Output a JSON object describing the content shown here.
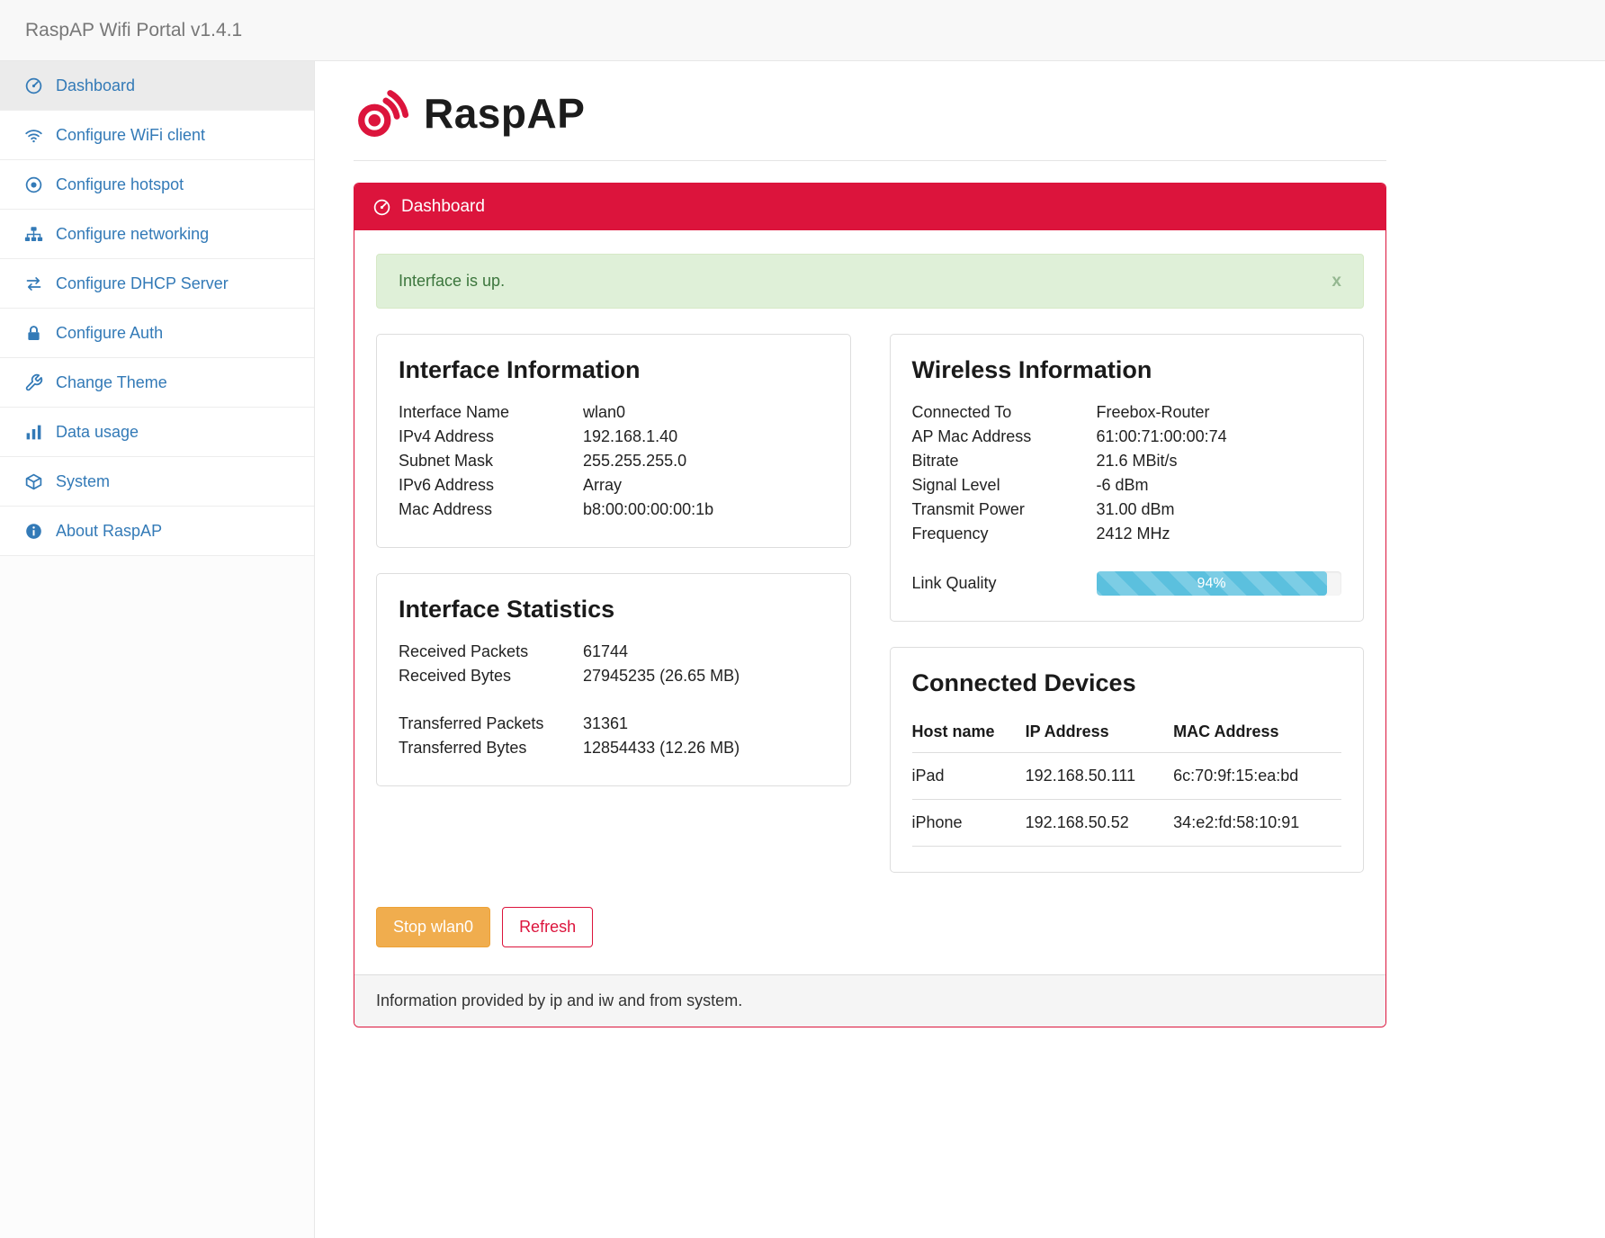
{
  "colors": {
    "accent": "#dc143c",
    "link": "#337ab7",
    "warning": "#f0ad4e",
    "info": "#5bc0de",
    "success_bg": "#dff0d8",
    "success_text": "#3c763d"
  },
  "header": {
    "title": "RaspAP Wifi Portal v1.4.1"
  },
  "sidebar": {
    "items": [
      {
        "label": "Dashboard",
        "icon": "dashboard-icon",
        "active": true
      },
      {
        "label": "Configure WiFi client",
        "icon": "wifi-icon",
        "active": false
      },
      {
        "label": "Configure hotspot",
        "icon": "dot-circle-icon",
        "active": false
      },
      {
        "label": "Configure networking",
        "icon": "sitemap-icon",
        "active": false
      },
      {
        "label": "Configure DHCP Server",
        "icon": "exchange-icon",
        "active": false
      },
      {
        "label": "Configure Auth",
        "icon": "lock-icon",
        "active": false
      },
      {
        "label": "Change Theme",
        "icon": "wrench-icon",
        "active": false
      },
      {
        "label": "Data usage",
        "icon": "bar-chart-icon",
        "active": false
      },
      {
        "label": "System",
        "icon": "cube-icon",
        "active": false
      },
      {
        "label": "About RaspAP",
        "icon": "info-icon",
        "active": false
      }
    ]
  },
  "main": {
    "brand": "RaspAP",
    "panel": {
      "title": "Dashboard",
      "alert": {
        "text": "Interface is up.",
        "close_label": "x"
      },
      "interface_info": {
        "title": "Interface Information",
        "rows": [
          [
            "Interface Name",
            "wlan0"
          ],
          [
            "IPv4 Address",
            "192.168.1.40"
          ],
          [
            "Subnet Mask",
            "255.255.255.0"
          ],
          [
            "IPv6 Address",
            "Array"
          ],
          [
            "Mac Address",
            "b8:00:00:00:00:1b"
          ]
        ]
      },
      "interface_stats": {
        "title": "Interface Statistics",
        "group1": [
          [
            "Received Packets",
            "61744"
          ],
          [
            "Received Bytes",
            "27945235 (26.65 MB)"
          ]
        ],
        "group2": [
          [
            "Transferred Packets",
            "31361"
          ],
          [
            "Transferred Bytes",
            "12854433 (12.26 MB)"
          ]
        ]
      },
      "wireless_info": {
        "title": "Wireless Information",
        "rows": [
          [
            "Connected To",
            "Freebox-Router"
          ],
          [
            "AP Mac Address",
            "61:00:71:00:00:74"
          ],
          [
            "Bitrate",
            "21.6 MBit/s"
          ],
          [
            "Signal Level",
            "-6 dBm"
          ],
          [
            "Transmit Power",
            "31.00 dBm"
          ],
          [
            "Frequency",
            "2412 MHz"
          ]
        ],
        "link_quality_label": "Link Quality",
        "link_quality_pct": 94,
        "link_quality_text": "94%"
      },
      "connected_devices": {
        "title": "Connected Devices",
        "columns": [
          "Host name",
          "IP Address",
          "MAC Address"
        ],
        "rows": [
          [
            "iPad",
            "192.168.50.111",
            "6c:70:9f:15:ea:bd"
          ],
          [
            "iPhone",
            "192.168.50.52",
            "34:e2:fd:58:10:91"
          ]
        ]
      },
      "buttons": {
        "stop": "Stop wlan0",
        "refresh": "Refresh"
      },
      "footer": "Information provided by ip and iw and from system."
    }
  }
}
